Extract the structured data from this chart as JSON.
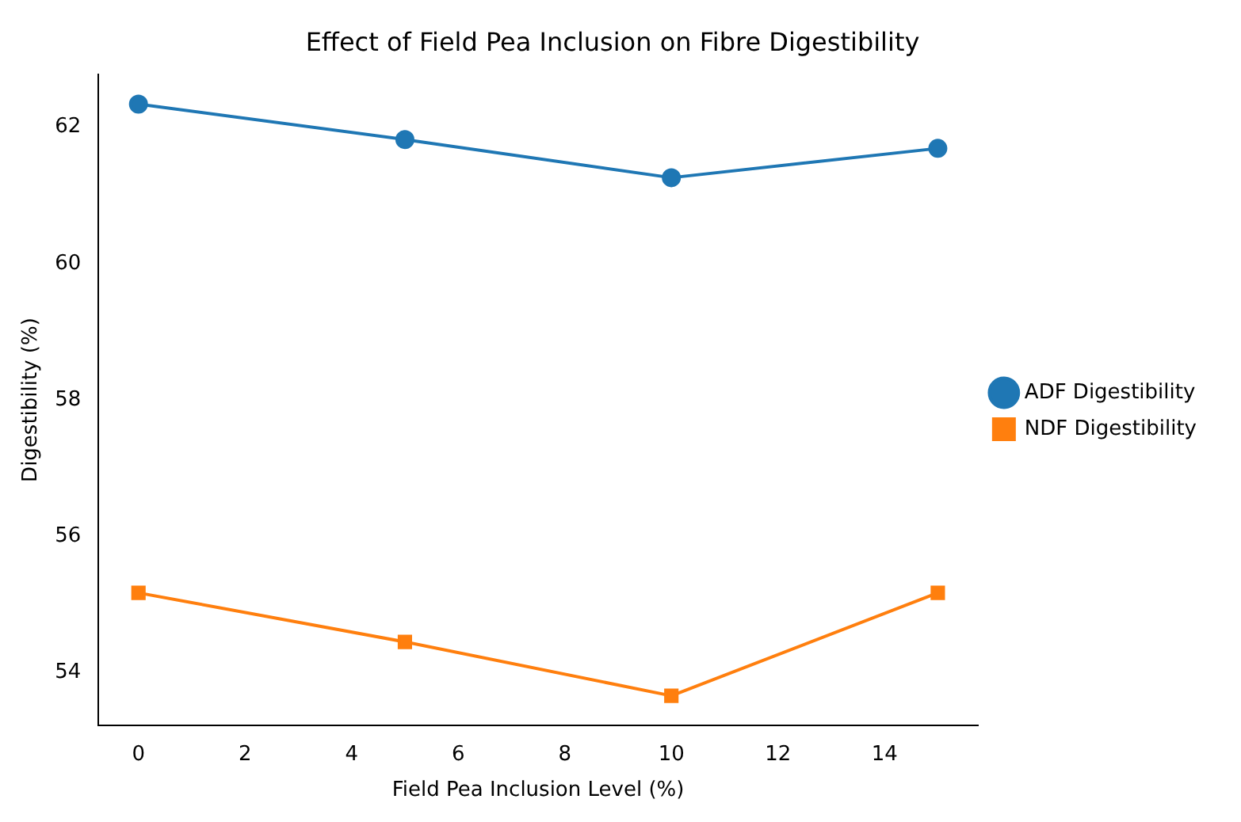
{
  "chart_data": {
    "type": "line",
    "title": "Effect of Field Pea Inclusion on Fibre Digestibility",
    "xlabel": "Field Pea Inclusion Level (%)",
    "ylabel": "Digestibility (%)",
    "x": [
      0,
      5,
      10,
      15
    ],
    "series": [
      {
        "name": "ADF Digestibility",
        "color": "#1f77b4",
        "marker": "circle",
        "values": [
          62.34,
          61.82,
          61.26,
          61.69
        ]
      },
      {
        "name": "NDF Digestibility",
        "color": "#ff7f0e",
        "marker": "square",
        "values": [
          55.17,
          54.45,
          53.66,
          55.17
        ]
      }
    ],
    "xlim": [
      -0.75,
      15.75
    ],
    "xticks": [
      0,
      2,
      4,
      6,
      8,
      10,
      12,
      14
    ],
    "ylim": [
      53.23,
      62.77
    ],
    "yticks": [
      54,
      56,
      58,
      60,
      62
    ],
    "grid": false,
    "legend": "right",
    "line_style": "solid"
  }
}
